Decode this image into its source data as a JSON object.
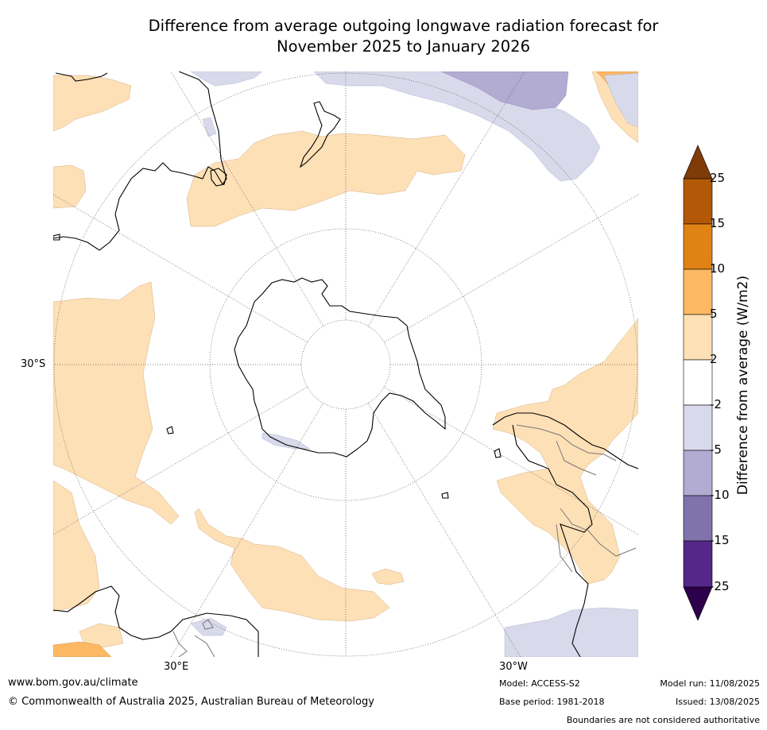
{
  "title_line1": "Difference from average outgoing longwave radiation forecast for",
  "title_line2": "November 2025 to January 2026",
  "map": {
    "projection": "south-polar-stereographic",
    "lat_labels": [
      "30°S"
    ],
    "lon_labels": [
      "30°E",
      "30°W"
    ]
  },
  "colorbar": {
    "title": "Difference from average (W/m2)",
    "ticks": [
      "25",
      "15",
      "10",
      "5",
      "2",
      "-2",
      "-5",
      "-10",
      "-15",
      "-25"
    ],
    "colors": [
      "#7f3b08",
      "#b35806",
      "#e08214",
      "#fdb863",
      "#fee0b6",
      "#ffffff",
      "#d8daeb",
      "#b2abd2",
      "#8073ac",
      "#542788",
      "#2d004b"
    ]
  },
  "footer": {
    "website": "www.bom.gov.au/climate",
    "copyright": "© Commonwealth of Australia 2025, Australian Bureau of Meteorology",
    "model": "Model: ACCESS-S2",
    "base_period": "Base period: 1981-2018",
    "model_run": "Model run: 11/08/2025",
    "issued": "Issued: 13/08/2025",
    "disclaimer": "Boundaries are not considered authoritative"
  }
}
